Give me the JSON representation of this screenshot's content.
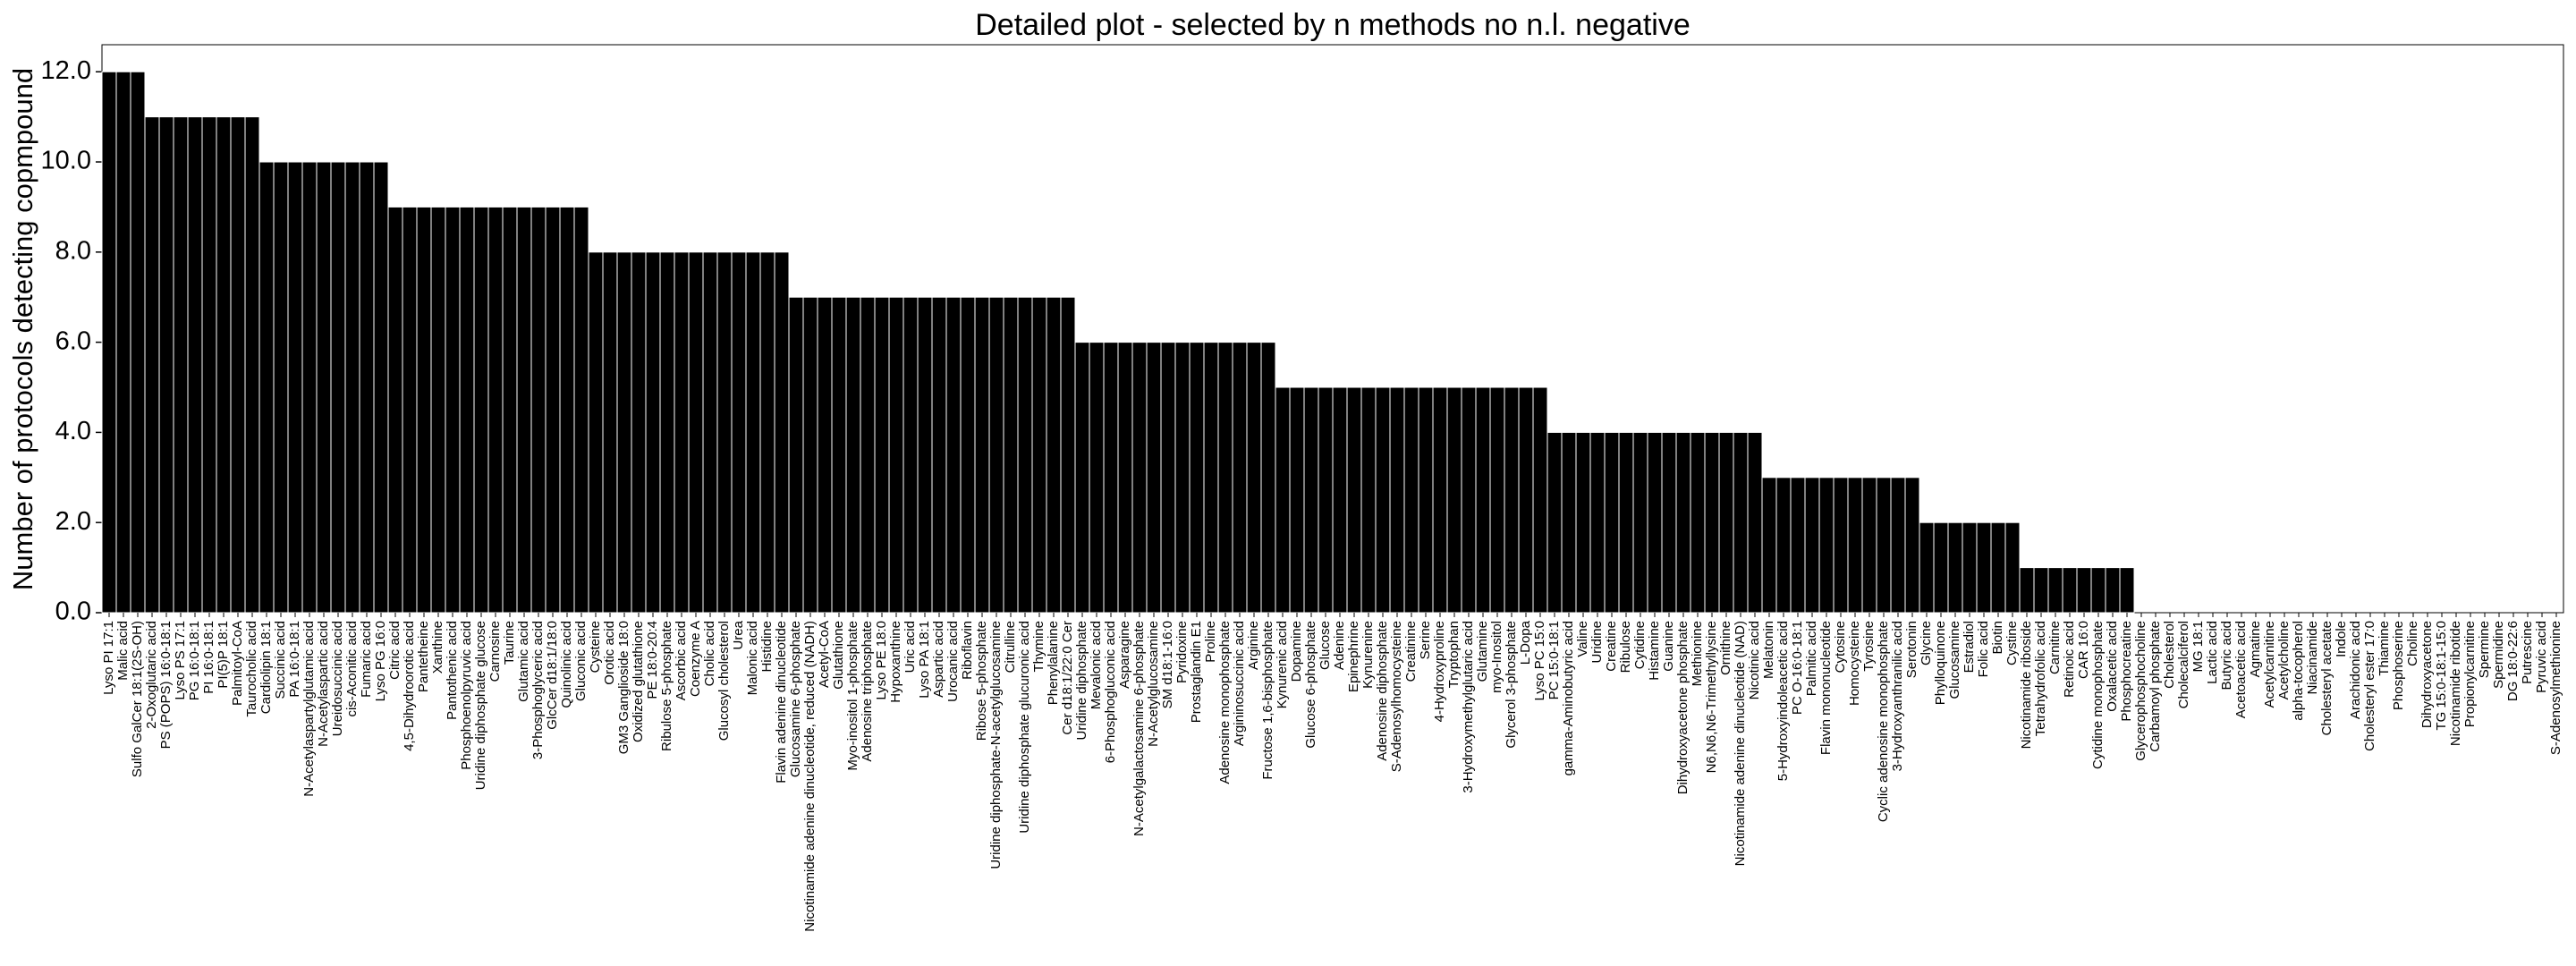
{
  "chart_data": {
    "type": "bar",
    "title": "Detailed plot - selected by n methods no n.l. negative",
    "y_label": "Number of protocols detecting copmpound",
    "color": "#000000",
    "ylim": [
      0,
      12.6
    ],
    "yticks": [
      {
        "value": 0,
        "label": "0.0"
      },
      {
        "value": 2,
        "label": "2.0"
      },
      {
        "value": 4,
        "label": "4.0"
      },
      {
        "value": 6,
        "label": "6.0"
      },
      {
        "value": 8,
        "label": "8.0"
      },
      {
        "value": 10,
        "label": "10.0"
      },
      {
        "value": 12,
        "label": "12.0"
      }
    ],
    "categories": [
      "Lyso PI 17:1",
      "Malic acid",
      "Sulfo GalCer 18:1(2S-OH)",
      "2-Oxoglutaric acid",
      "PS (POPS) 16:0-18:1",
      "Lyso PS 17:1",
      "PG 16:0-18:1",
      "PI 16:0-18:1",
      "PI(5)P 18:1",
      "Palmitoyl-CoA",
      "Taurocholic acid",
      "Cardiolipin 18:1",
      "Succinic acid",
      "PA 16:0-18:1",
      "N-Acetylaspartylglutamic acid",
      "N-Acetylaspartic acid",
      "Ureidosuccinic acid",
      "cis-Aconitic acid",
      "Fumaric acid",
      "Lyso PG 16:0",
      "Citric acid",
      "4,5-Dihydroorotic acid",
      "Pantetheine",
      "Xanthine",
      "Pantothenic acid",
      "Phosphoenolpyruvic acid",
      "Uridine diphosphate glucose",
      "Carnosine",
      "Taurine",
      "Glutamic acid",
      "3-Phosphoglyceric acid",
      "GlcCer d18:1/18:0",
      "Quinolinic acid",
      "Gluconic acid",
      "Cysteine",
      "Orotic acid",
      "GM3 Ganglioside 18:0",
      "Oxidized glutathione",
      "PE 18:0-20:4",
      "Ribulose 5-phosphate",
      "Ascorbic acid",
      "Coenzyme A",
      "Cholic acid",
      "Glucosyl cholesterol",
      "Urea",
      "Malonic acid",
      "Histidine",
      "Flavin adenine dinucleotide",
      "Glucosamine 6-phosphate",
      "Nicotinamide adenine dinucleotide, reduced (NADH)",
      "Acetyl-CoA",
      "Glutathione",
      "Myo-inositol 1-phosphate",
      "Adenosine triphosphate",
      "Lyso PE 18:0",
      "Hypoxanthine",
      "Uric acid",
      "Lyso PA 18:1",
      "Aspartic acid",
      "Urocanic acid",
      "Riboflavin",
      "Ribose 5-phosphate",
      "Uridine diphosphate-N-acetylglucosamine",
      "Citrulline",
      "Uridine diphosphate glucuronic acid",
      "Thymine",
      "Phenylalanine",
      "Cer d18:1/22:0 Cer",
      "Uridine diphosphate",
      "Mevalonic acid",
      "6-Phosphogluconic acid",
      "Asparagine",
      "N-Acetylgalactosamine 6-phosphate",
      "N-Acetylglucosamine",
      "SM d18:1-16:0",
      "Pyridoxine",
      "Prostaglandin E1",
      "Proline",
      "Adenosine monophosphate",
      "Argininosuccinic acid",
      "Arginine",
      "Fructose 1,6-bisphosphate",
      "Kynurenic acid",
      "Dopamine",
      "Glucose 6-phosphate",
      "Glucose",
      "Adenine",
      "Epinephrine",
      "Kynurenine",
      "Adenosine diphosphate",
      "S-Adenosylhomocysteine",
      "Creatinine",
      "Serine",
      "4-Hydroxyproline",
      "Tryptophan",
      "3-Hydroxymethylglutaric acid",
      "Glutamine",
      "myo-Inositol",
      "Glycerol 3-phosphate",
      "L-Dopa",
      "Lyso PC 15:0",
      "PC 15:0-18:1",
      "gamma-Aminobutyric acid",
      "Valine",
      "Uridine",
      "Creatine",
      "Ribulose",
      "Cytidine",
      "Histamine",
      "Guanine",
      "Dihydroxyacetone phosphate",
      "Methionine",
      "N6,N6,N6-Trimethyllysine",
      "Ornithine",
      "Nicotinamide adenine dinucleotide (NAD)",
      "Nicotinic acid",
      "Melatonin",
      "5-Hydroxyindoleacetic acid",
      "PC O-16:0-18:1",
      "Palmitic acid",
      "Flavin mononucleotide",
      "Cytosine",
      "Homocysteine",
      "Tyrosine",
      "Cyclic adenosine monophosphate",
      "3-Hydroxyanthranilic acid",
      "Serotonin",
      "Glycine",
      "Phylloquinone",
      "Glucosamine",
      "Estradiol",
      "Folic acid",
      "Biotin",
      "Cystine",
      "Nicotinamide riboside",
      "Tetrahydrofolic acid",
      "Carnitine",
      "Retinoic acid",
      "CAR 16:0",
      "Cytidine monophosphate",
      "Oxalacetic acid",
      "Phosphocreatine",
      "Glycerophosphocholine",
      "Carbamoyl phosphate",
      "Cholesterol",
      "Cholecalciferol",
      "MG 18:1",
      "Lactic acid",
      "Butyric acid",
      "Acetoacetic acid",
      "Agmatine",
      "Acetylcarnitine",
      "Acetylcholine",
      "alpha-tocopherol",
      "Niacinamide",
      "Cholesteryl acetate",
      "Indole",
      "Arachidonic acid",
      "Cholesteryl ester 17:0",
      "Thiamine",
      "Phosphoserine",
      "Choline",
      "Dihydroxyacetone",
      "TG 15:0-18:1-15:0",
      "Nicotinamide ribotide",
      "Propionylcarnitine",
      "Spermine",
      "Spermidine",
      "DG 18:0-22:6",
      "Putrescine",
      "Pyruvic acid",
      "S-Adenosylmethionine"
    ],
    "values": [
      12,
      12,
      12,
      11,
      11,
      11,
      11,
      11,
      11,
      11,
      11,
      10,
      10,
      10,
      10,
      10,
      10,
      10,
      10,
      10,
      9,
      9,
      9,
      9,
      9,
      9,
      9,
      9,
      9,
      9,
      9,
      9,
      9,
      9,
      8,
      8,
      8,
      8,
      8,
      8,
      8,
      8,
      8,
      8,
      8,
      8,
      8,
      8,
      7,
      7,
      7,
      7,
      7,
      7,
      7,
      7,
      7,
      7,
      7,
      7,
      7,
      7,
      7,
      7,
      7,
      7,
      7,
      7,
      6,
      6,
      6,
      6,
      6,
      6,
      6,
      6,
      6,
      6,
      6,
      6,
      6,
      6,
      5,
      5,
      5,
      5,
      5,
      5,
      5,
      5,
      5,
      5,
      5,
      5,
      5,
      5,
      5,
      5,
      5,
      5,
      5,
      4,
      4,
      4,
      4,
      4,
      4,
      4,
      4,
      4,
      4,
      4,
      4,
      4,
      4,
      4,
      3,
      3,
      3,
      3,
      3,
      3,
      3,
      3,
      3,
      3,
      3,
      2,
      2,
      2,
      2,
      2,
      2,
      2,
      1,
      1,
      1,
      1,
      1,
      1,
      1,
      1,
      0,
      0,
      0,
      0,
      0,
      0,
      0,
      0,
      0,
      0,
      0,
      0,
      0,
      0,
      0,
      0,
      0,
      0,
      0,
      0,
      0,
      0,
      0,
      0,
      0,
      0,
      0,
      0,
      0,
      0
    ]
  }
}
